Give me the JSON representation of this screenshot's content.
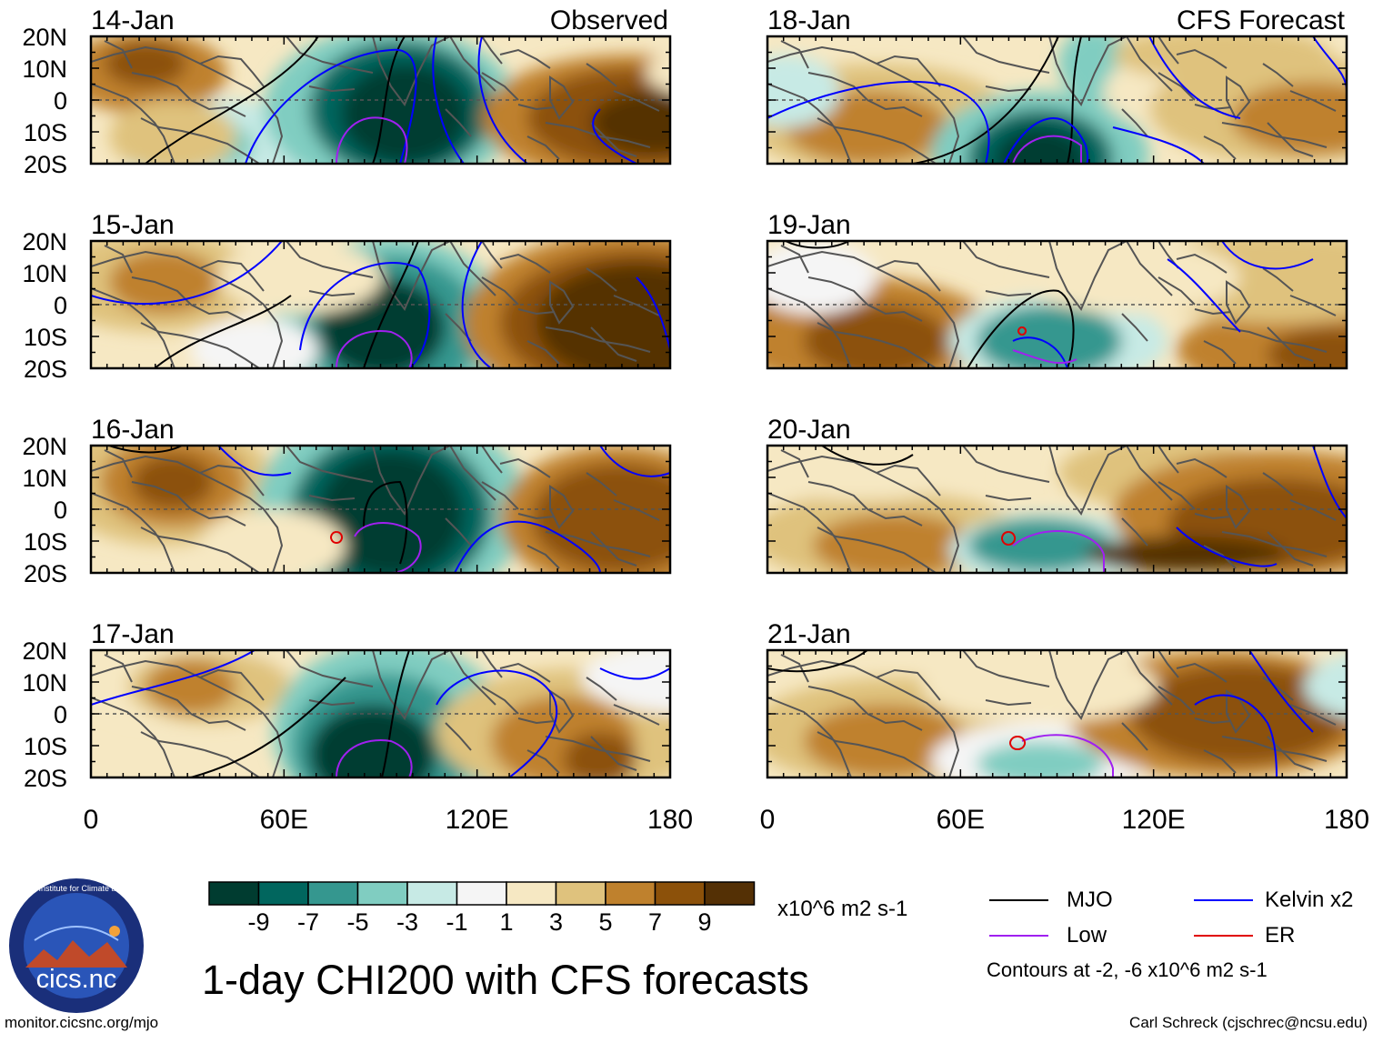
{
  "panels": [
    {
      "date": "14-Jan",
      "corner_label": "Observed"
    },
    {
      "date": "18-Jan",
      "corner_label": "CFS Forecast"
    },
    {
      "date": "15-Jan",
      "corner_label": ""
    },
    {
      "date": "19-Jan",
      "corner_label": ""
    },
    {
      "date": "16-Jan",
      "corner_label": ""
    },
    {
      "date": "20-Jan",
      "corner_label": ""
    },
    {
      "date": "17-Jan",
      "corner_label": ""
    },
    {
      "date": "21-Jan",
      "corner_label": ""
    }
  ],
  "lat_labels": [
    "20N",
    "10N",
    "0",
    "10S",
    "20S"
  ],
  "lon_labels": [
    "0",
    "60E",
    "120E",
    "180"
  ],
  "colorbar": {
    "colors": [
      "#003c30",
      "#01665e",
      "#35978f",
      "#80cdc1",
      "#c7eae5",
      "#f5f5f5",
      "#f6e8c3",
      "#dfc27d",
      "#bf812d",
      "#8c510a",
      "#543005"
    ],
    "tick_labels": [
      "-9",
      "-7",
      "-5",
      "-3",
      "-1",
      "1",
      "3",
      "5",
      "7",
      "9"
    ],
    "units": "x10^6 m2 s-1"
  },
  "title": "1-day CHI200 with CFS forecasts",
  "legend": {
    "items": [
      {
        "label": "MJO",
        "color": "#000000"
      },
      {
        "label": "Kelvin x2",
        "color": "#0000ff"
      },
      {
        "label": "Low",
        "color": "#a020f0"
      },
      {
        "label": "ER",
        "color": "#e00000"
      }
    ],
    "note": "Contours at -2, -6 x10^6 m2 s-1"
  },
  "logo_text": "cics.nc",
  "logo_ring_text": "Cooperative Institute for Climate and Satellites",
  "footer_left": "monitor.cicsnc.org/mjo",
  "footer_right": "Carl Schreck (cjschrec@ncsu.edu)",
  "colors": {
    "coast": "#555555",
    "frame": "#000000",
    "mjo": "#000000",
    "kelvin": "#0000ff",
    "low": "#a020f0",
    "er": "#e00000"
  }
}
